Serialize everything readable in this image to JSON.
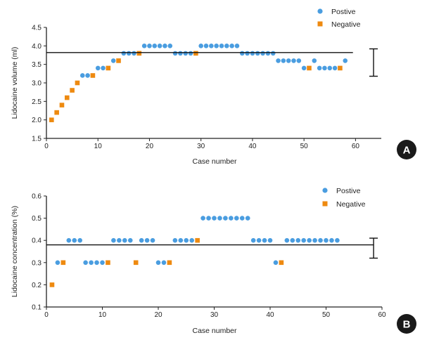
{
  "colors": {
    "positive": "#4a9de0",
    "negative": "#ee8a10",
    "axis": "#222222",
    "badge": "#1a1a1a"
  },
  "chart_data": [
    {
      "panel": "A",
      "type": "scatter",
      "xlabel": "Case number",
      "ylabel": "Lidocaine volume (ml)",
      "xlim": [
        0,
        65
      ],
      "ylim": [
        1.5,
        4.5
      ],
      "xticks": [
        "0",
        "10",
        "20",
        "30",
        "40",
        "50",
        "60"
      ],
      "yticks": [
        "1.5",
        "2.0",
        "2.5",
        "3.0",
        "3.5",
        "4.0",
        "4.5"
      ],
      "legend": {
        "position": "top-right",
        "entries": [
          "Postive",
          "Negative"
        ]
      },
      "reference_line": {
        "y": 3.82,
        "x_end": 59.5
      },
      "error_bar": {
        "x": 63.5,
        "center": 3.82,
        "low": 3.18,
        "high": 3.92
      },
      "series": [
        {
          "name": "Postive",
          "points": [
            [
              7,
              3.2
            ],
            [
              8,
              3.2
            ],
            [
              10,
              3.4
            ],
            [
              11,
              3.4
            ],
            [
              13,
              3.6
            ],
            [
              15,
              3.8
            ],
            [
              16,
              3.8
            ],
            [
              17,
              3.8
            ],
            [
              19,
              4.0
            ],
            [
              20,
              4.0
            ],
            [
              21,
              4.0
            ],
            [
              22,
              4.0
            ],
            [
              23,
              4.0
            ],
            [
              24,
              4.0
            ],
            [
              25,
              3.8
            ],
            [
              26,
              3.8
            ],
            [
              27,
              3.8
            ],
            [
              28,
              3.8
            ],
            [
              30,
              4.0
            ],
            [
              31,
              4.0
            ],
            [
              32,
              4.0
            ],
            [
              33,
              4.0
            ],
            [
              34,
              4.0
            ],
            [
              35,
              4.0
            ],
            [
              36,
              4.0
            ],
            [
              37,
              4.0
            ],
            [
              38,
              3.8
            ],
            [
              39,
              3.8
            ],
            [
              40,
              3.8
            ],
            [
              41,
              3.8
            ],
            [
              42,
              3.8
            ],
            [
              43,
              3.8
            ],
            [
              44,
              3.8
            ],
            [
              45,
              3.6
            ],
            [
              46,
              3.6
            ],
            [
              47,
              3.6
            ],
            [
              48,
              3.6
            ],
            [
              49,
              3.6
            ],
            [
              50,
              3.4
            ],
            [
              52,
              3.6
            ],
            [
              53,
              3.4
            ],
            [
              54,
              3.4
            ],
            [
              55,
              3.4
            ],
            [
              56,
              3.4
            ],
            [
              58,
              3.6
            ]
          ]
        },
        {
          "name": "Negative",
          "points": [
            [
              1,
              2.0
            ],
            [
              2,
              2.2
            ],
            [
              3,
              2.4
            ],
            [
              4,
              2.6
            ],
            [
              5,
              2.8
            ],
            [
              6,
              3.0
            ],
            [
              9,
              3.2
            ],
            [
              12,
              3.4
            ],
            [
              14,
              3.6
            ],
            [
              18,
              3.8
            ],
            [
              29,
              3.8
            ],
            [
              51,
              3.4
            ],
            [
              57,
              3.4
            ]
          ]
        }
      ]
    },
    {
      "panel": "B",
      "type": "scatter",
      "xlabel": "Case number",
      "ylabel": "Lidocaine concentration (%)",
      "xlim": [
        0,
        60
      ],
      "ylim": [
        0.1,
        0.6
      ],
      "xticks": [
        "0",
        "10",
        "20",
        "30",
        "40",
        "50",
        "60"
      ],
      "yticks": [
        "0.1",
        "0.2",
        "0.3",
        "0.4",
        "0.5",
        "0.6"
      ],
      "legend": {
        "position": "top-right",
        "entries": [
          "Postive",
          "Negative"
        ]
      },
      "reference_line": {
        "y": 0.38,
        "x_end": 58.5
      },
      "error_bar": {
        "x": 58.5,
        "center": 0.38,
        "low": 0.32,
        "high": 0.41
      },
      "series": [
        {
          "name": "Postive",
          "points": [
            [
              2,
              0.3
            ],
            [
              4,
              0.4
            ],
            [
              5,
              0.4
            ],
            [
              6,
              0.4
            ],
            [
              7,
              0.3
            ],
            [
              8,
              0.3
            ],
            [
              9,
              0.3
            ],
            [
              10,
              0.3
            ],
            [
              12,
              0.4
            ],
            [
              13,
              0.4
            ],
            [
              14,
              0.4
            ],
            [
              15,
              0.4
            ],
            [
              17,
              0.4
            ],
            [
              18,
              0.4
            ],
            [
              19,
              0.4
            ],
            [
              20,
              0.3
            ],
            [
              21,
              0.3
            ],
            [
              23,
              0.4
            ],
            [
              24,
              0.4
            ],
            [
              25,
              0.4
            ],
            [
              26,
              0.4
            ],
            [
              28,
              0.5
            ],
            [
              29,
              0.5
            ],
            [
              30,
              0.5
            ],
            [
              31,
              0.5
            ],
            [
              32,
              0.5
            ],
            [
              33,
              0.5
            ],
            [
              34,
              0.5
            ],
            [
              35,
              0.5
            ],
            [
              36,
              0.5
            ],
            [
              37,
              0.4
            ],
            [
              38,
              0.4
            ],
            [
              39,
              0.4
            ],
            [
              40,
              0.4
            ],
            [
              41,
              0.3
            ],
            [
              43,
              0.4
            ],
            [
              44,
              0.4
            ],
            [
              45,
              0.4
            ],
            [
              46,
              0.4
            ],
            [
              47,
              0.4
            ],
            [
              48,
              0.4
            ],
            [
              49,
              0.4
            ],
            [
              50,
              0.4
            ],
            [
              51,
              0.4
            ],
            [
              52,
              0.4
            ]
          ]
        },
        {
          "name": "Negative",
          "points": [
            [
              1,
              0.2
            ],
            [
              3,
              0.3
            ],
            [
              11,
              0.3
            ],
            [
              16,
              0.3
            ],
            [
              22,
              0.3
            ],
            [
              27,
              0.4
            ],
            [
              42,
              0.3
            ]
          ]
        }
      ]
    }
  ]
}
